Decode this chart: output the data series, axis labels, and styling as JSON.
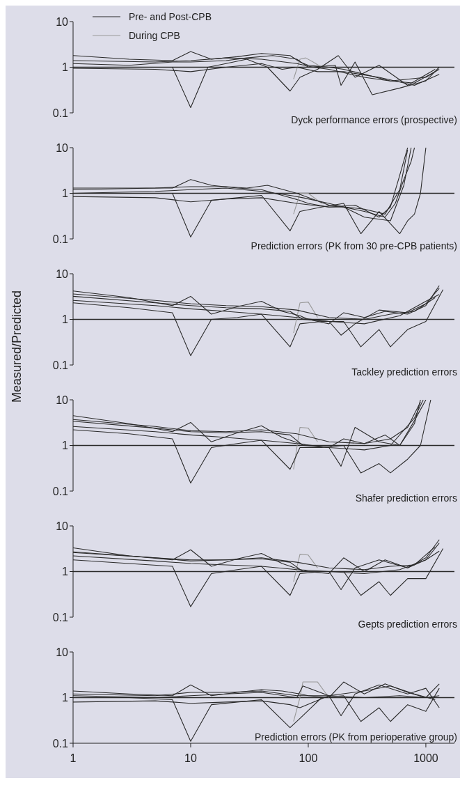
{
  "chart_data": [
    {
      "type": "line",
      "title": "Dyck performance errors (prospective)",
      "log": "xy",
      "xlim": [
        1,
        1750
      ],
      "ylim": [
        0.1,
        10
      ],
      "yticks": [
        0.1,
        1,
        10
      ],
      "tick_labels": "y",
      "legend": "top left",
      "ref_lines": [
        {
          "axis": "y",
          "value": 1,
          "color": "#2a2a2a"
        }
      ],
      "series": [
        {
          "name": "Pre- and Post-CPB",
          "color": "#2a2a2a",
          "x": [
            1,
            3,
            7,
            10,
            15,
            25,
            40,
            70,
            85,
            100,
            150,
            200,
            300,
            500,
            800,
            1200
          ],
          "values": [
            1.8,
            1.5,
            1.4,
            2.2,
            1.5,
            1.7,
            2.0,
            1.8,
            1.3,
            1.1,
            1.0,
            0.9,
            0.7,
            0.5,
            0.45,
            0.8
          ]
        },
        {
          "name": "During CPB",
          "color": "#9a9a9a",
          "x": [
            75,
            85,
            95,
            110,
            130
          ],
          "values": [
            0.55,
            1.5,
            1.6,
            1.3,
            1.0
          ]
        },
        {
          "color": "#2a2a2a",
          "x": [
            1,
            3,
            7,
            10,
            14,
            20,
            30,
            45,
            70,
            85,
            120,
            180,
            250,
            400,
            700,
            1200
          ],
          "values": [
            1.0,
            1.0,
            1.0,
            0.13,
            1.0,
            1.2,
            1.5,
            1.0,
            0.3,
            0.6,
            0.9,
            1.8,
            0.6,
            1.1,
            0.4,
            0.9
          ]
        },
        {
          "color": "#2a2a2a",
          "x": [
            1,
            3,
            7,
            10,
            20,
            30,
            50,
            80,
            100,
            170,
            190,
            250,
            350,
            600,
            1000,
            1300
          ],
          "values": [
            1.2,
            1.1,
            1.3,
            1.3,
            1.4,
            1.6,
            1.8,
            1.5,
            1.0,
            1.1,
            0.4,
            1.3,
            0.25,
            0.35,
            0.5,
            1.0
          ]
        },
        {
          "color": "#2a2a2a",
          "x": [
            1,
            5,
            10,
            20,
            40,
            80,
            110,
            150,
            300,
            500,
            1000,
            1300
          ],
          "values": [
            1.4,
            1.3,
            1.4,
            1.6,
            1.5,
            1.2,
            1.0,
            0.9,
            0.6,
            0.5,
            0.6,
            0.9
          ]
        },
        {
          "color": "#2a2a2a",
          "x": [
            1,
            5,
            10,
            20,
            40,
            60,
            80,
            120,
            200,
            400,
            800,
            1300
          ],
          "values": [
            0.95,
            0.9,
            0.8,
            1.0,
            1.2,
            0.9,
            1.0,
            0.8,
            0.8,
            0.6,
            0.4,
            0.7
          ]
        }
      ]
    },
    {
      "type": "line",
      "title": "Prediction errors (PK from 30 pre-CPB patients)",
      "log": "xy",
      "xlim": [
        1,
        1750
      ],
      "ylim": [
        0.1,
        10
      ],
      "yticks": [
        0.1,
        1,
        10
      ],
      "tick_labels": "y",
      "ref_lines": [
        {
          "axis": "y",
          "value": 1,
          "color": "#2a2a2a"
        }
      ],
      "series": [
        {
          "color": "#2a2a2a",
          "x": [
            1,
            3,
            7,
            10,
            15,
            25,
            40,
            60,
            85,
            100,
            150,
            200,
            300,
            450,
            550,
            650,
            750,
            800
          ],
          "values": [
            1.3,
            1.3,
            1.3,
            2.0,
            1.5,
            1.3,
            1.2,
            0.9,
            0.7,
            0.6,
            0.5,
            0.5,
            0.4,
            0.3,
            0.6,
            2,
            5,
            10
          ]
        },
        {
          "color": "#9a9a9a",
          "x": [
            75,
            85,
            100,
            130
          ],
          "values": [
            0.35,
            1.0,
            1.0,
            0.6
          ]
        },
        {
          "color": "#2a2a2a",
          "x": [
            1,
            3,
            7,
            10,
            15,
            25,
            40,
            70,
            85,
            130,
            200,
            280,
            400,
            600,
            700,
            800,
            900,
            1000
          ],
          "values": [
            1.0,
            1.0,
            1.0,
            0.11,
            0.7,
            0.8,
            0.9,
            0.15,
            0.4,
            0.5,
            0.6,
            0.13,
            0.4,
            0.13,
            0.25,
            0.35,
            1,
            10
          ]
        },
        {
          "color": "#2a2a2a",
          "x": [
            1,
            5,
            10,
            20,
            40,
            70,
            90,
            150,
            200,
            300,
            500,
            650,
            750
          ],
          "values": [
            1.0,
            1.1,
            1.2,
            1.3,
            1.1,
            0.9,
            0.8,
            0.6,
            0.5,
            0.3,
            0.25,
            1.5,
            10
          ]
        },
        {
          "color": "#2a2a2a",
          "x": [
            1,
            5,
            10,
            20,
            40,
            80,
            150,
            250,
            400,
            500,
            600,
            700
          ],
          "values": [
            0.85,
            0.8,
            0.65,
            0.75,
            0.8,
            0.6,
            0.5,
            0.55,
            0.3,
            0.5,
            2.5,
            10
          ]
        },
        {
          "color": "#2a2a2a",
          "x": [
            1,
            5,
            10,
            20,
            30,
            45,
            80,
            150,
            300,
            450,
            600,
            700
          ],
          "values": [
            1.2,
            1.3,
            1.4,
            1.4,
            1.3,
            1.5,
            1.0,
            0.55,
            0.45,
            0.35,
            1.2,
            9
          ]
        }
      ]
    },
    {
      "type": "line",
      "title": "Tackley prediction errors",
      "ylabel": "Measured/Predicted",
      "log": "xy",
      "xlim": [
        1,
        1750
      ],
      "ylim": [
        0.1,
        10
      ],
      "yticks": [
        0.1,
        1,
        10
      ],
      "tick_labels": "y",
      "ref_lines": [
        {
          "axis": "y",
          "value": 1,
          "color": "#2a2a2a"
        }
      ],
      "series": [
        {
          "color": "#2a2a2a",
          "x": [
            1,
            3,
            7,
            10,
            15,
            25,
            40,
            60,
            85,
            100,
            150,
            200,
            300,
            450,
            700,
            1000,
            1300
          ],
          "values": [
            4.2,
            3,
            2,
            3.2,
            1.3,
            1.9,
            2.5,
            1.5,
            1.2,
            1.0,
            0.8,
            1.4,
            1.1,
            1.5,
            1.3,
            2,
            5.5
          ]
        },
        {
          "color": "#9a9a9a",
          "x": [
            75,
            85,
            100,
            120
          ],
          "values": [
            0.5,
            2.3,
            2.4,
            1.1
          ]
        },
        {
          "color": "#2a2a2a",
          "x": [
            1,
            3,
            7,
            10,
            15,
            25,
            40,
            70,
            85,
            130,
            200,
            280,
            400,
            500,
            700,
            1000,
            1400
          ],
          "values": [
            2.3,
            1.8,
            1.4,
            0.16,
            1.0,
            1.1,
            1.3,
            0.25,
            0.8,
            0.9,
            0.9,
            0.25,
            0.6,
            0.25,
            0.6,
            0.9,
            4.5
          ]
        },
        {
          "color": "#2a2a2a",
          "x": [
            1,
            5,
            10,
            20,
            40,
            70,
            90,
            150,
            190,
            250,
            400,
            700,
            1000,
            1300
          ],
          "values": [
            3.2,
            2.3,
            2.0,
            1.8,
            1.7,
            1.5,
            1.0,
            0.9,
            0.45,
            0.8,
            1.6,
            1.4,
            2.2,
            4.8
          ]
        },
        {
          "color": "#2a2a2a",
          "x": [
            1,
            5,
            10,
            20,
            40,
            80,
            150,
            300,
            600,
            1000,
            1300
          ],
          "values": [
            2.6,
            2.0,
            1.7,
            1.5,
            1.3,
            1.1,
            0.9,
            0.8,
            1.2,
            2.5,
            3.5
          ]
        },
        {
          "color": "#2a2a2a",
          "x": [
            1,
            5,
            10,
            20,
            40,
            80,
            150,
            300,
            500,
            800,
            1200
          ],
          "values": [
            3.6,
            2.6,
            2.2,
            2.0,
            1.9,
            1.6,
            1.1,
            1.0,
            1.3,
            1.5,
            3.0
          ]
        }
      ]
    },
    {
      "type": "line",
      "title": "Shafer prediction errors",
      "log": "xy",
      "xlim": [
        1,
        1750
      ],
      "ylim": [
        0.1,
        10
      ],
      "yticks": [
        0.1,
        1,
        10
      ],
      "tick_labels": "y",
      "ref_lines": [
        {
          "axis": "y",
          "value": 1,
          "color": "#2a2a2a"
        }
      ],
      "series": [
        {
          "color": "#2a2a2a",
          "x": [
            1,
            3,
            7,
            10,
            15,
            25,
            40,
            60,
            85,
            100,
            150,
            200,
            300,
            450,
            600,
            800,
            900
          ],
          "values": [
            4.5,
            3,
            2,
            3.2,
            1.2,
            1.9,
            2.7,
            1.5,
            1.1,
            1.0,
            0.9,
            1.4,
            1.1,
            1.7,
            1.0,
            3,
            10
          ]
        },
        {
          "color": "#9a9a9a",
          "x": [
            75,
            85,
            100,
            120
          ],
          "values": [
            0.3,
            2.5,
            2.4,
            1.2
          ]
        },
        {
          "color": "#2a2a2a",
          "x": [
            1,
            3,
            7,
            10,
            15,
            25,
            40,
            70,
            85,
            130,
            200,
            280,
            400,
            500,
            700,
            900,
            1100
          ],
          "values": [
            2.2,
            1.8,
            1.4,
            0.15,
            0.9,
            1.1,
            1.3,
            0.3,
            0.9,
            0.9,
            1.0,
            0.25,
            0.4,
            0.25,
            0.5,
            1,
            10
          ]
        },
        {
          "color": "#2a2a2a",
          "x": [
            1,
            5,
            10,
            20,
            40,
            70,
            90,
            150,
            190,
            250,
            400,
            600,
            800,
            1000
          ],
          "values": [
            3.4,
            2.4,
            2.0,
            1.9,
            2.0,
            1.7,
            1.0,
            0.9,
            0.35,
            2.5,
            1.2,
            1.0,
            3.5,
            10
          ]
        },
        {
          "color": "#2a2a2a",
          "x": [
            1,
            5,
            10,
            20,
            40,
            80,
            150,
            300,
            500,
            800,
            950
          ],
          "values": [
            2.6,
            2.0,
            1.7,
            1.5,
            1.3,
            1.1,
            0.9,
            0.8,
            1.0,
            4,
            10
          ]
        },
        {
          "color": "#2a2a2a",
          "x": [
            1,
            5,
            10,
            20,
            40,
            80,
            150,
            300,
            500,
            700,
            900
          ],
          "values": [
            3.7,
            2.6,
            2.1,
            2.0,
            2.2,
            1.8,
            1.2,
            1.1,
            1.4,
            2.5,
            9
          ]
        }
      ]
    },
    {
      "type": "line",
      "title": "Gepts prediction errors",
      "log": "xy",
      "xlim": [
        1,
        1750
      ],
      "ylim": [
        0.1,
        10
      ],
      "yticks": [
        0.1,
        1,
        10
      ],
      "tick_labels": "y",
      "ref_lines": [
        {
          "axis": "y",
          "value": 1,
          "color": "#2a2a2a"
        }
      ],
      "series": [
        {
          "color": "#2a2a2a",
          "x": [
            1,
            3,
            7,
            10,
            15,
            25,
            40,
            60,
            85,
            100,
            150,
            200,
            300,
            450,
            700,
            1000,
            1300
          ],
          "values": [
            3.3,
            2.2,
            1.8,
            3.0,
            1.3,
            1.9,
            2.5,
            1.5,
            1.1,
            1.0,
            0.9,
            2.0,
            1.0,
            1.8,
            1.2,
            2,
            5
          ]
        },
        {
          "color": "#9a9a9a",
          "x": [
            75,
            85,
            100,
            120
          ],
          "values": [
            0.6,
            2.4,
            2.3,
            1.2
          ]
        },
        {
          "color": "#2a2a2a",
          "x": [
            1,
            3,
            7,
            10,
            15,
            25,
            40,
            70,
            85,
            130,
            200,
            280,
            400,
            500,
            700,
            1000,
            1400
          ],
          "values": [
            1.8,
            1.5,
            1.3,
            0.17,
            0.9,
            1.1,
            1.3,
            0.3,
            0.9,
            1.0,
            1.0,
            0.3,
            0.6,
            0.3,
            0.7,
            0.7,
            3.2
          ]
        },
        {
          "color": "#2a2a2a",
          "x": [
            1,
            5,
            10,
            20,
            40,
            70,
            90,
            150,
            190,
            250,
            400,
            700,
            1000,
            1300
          ],
          "values": [
            2.7,
            2.0,
            1.7,
            1.8,
            1.9,
            1.6,
            1.0,
            1.0,
            0.4,
            1.2,
            1.8,
            1.2,
            1.8,
            4.2
          ]
        },
        {
          "color": "#2a2a2a",
          "x": [
            1,
            5,
            10,
            20,
            40,
            80,
            150,
            300,
            600,
            1000,
            1300
          ],
          "values": [
            2.2,
            1.7,
            1.5,
            1.4,
            1.3,
            1.1,
            1.0,
            0.9,
            1.1,
            1.8,
            2.8
          ]
        },
        {
          "color": "#2a2a2a",
          "x": [
            1,
            5,
            10,
            20,
            40,
            80,
            150,
            300,
            500,
            800,
            1200
          ],
          "values": [
            2.6,
            2.0,
            1.8,
            1.8,
            2.0,
            1.6,
            1.2,
            1.1,
            1.3,
            1.4,
            3.5
          ]
        }
      ]
    },
    {
      "type": "line",
      "title": "Prediction errors (PK from perioperative group)",
      "log": "xy",
      "xlim": [
        1,
        1750
      ],
      "xticks": [
        1,
        10,
        100,
        1000
      ],
      "ylim": [
        0.1,
        10
      ],
      "yticks": [
        0.1,
        1,
        10
      ],
      "ref_lines": [
        {
          "axis": "y",
          "value": 1,
          "color": "#2a2a2a"
        }
      ],
      "series": [
        {
          "color": "#2a2a2a",
          "x": [
            1,
            3,
            7,
            10,
            15,
            25,
            40,
            60,
            85,
            100,
            150,
            200,
            300,
            450,
            700,
            1000,
            1300
          ],
          "values": [
            1.4,
            1.2,
            1.1,
            1.9,
            1.1,
            1.3,
            1.5,
            1.4,
            1.2,
            1.1,
            1.0,
            2.2,
            1.2,
            2.0,
            1.3,
            1.0,
            2.0
          ]
        },
        {
          "color": "#9a9a9a",
          "x": [
            75,
            85,
            90,
            120,
            150
          ],
          "values": [
            0.3,
            1.0,
            2.2,
            2.2,
            1.0
          ]
        },
        {
          "color": "#2a2a2a",
          "x": [
            1,
            3,
            7,
            10,
            15,
            25,
            40,
            70,
            85,
            130,
            200,
            280,
            400,
            500,
            700,
            1000,
            1300
          ],
          "values": [
            1.0,
            1.0,
            0.9,
            0.11,
            0.7,
            0.8,
            0.9,
            0.22,
            0.35,
            1.0,
            1.1,
            0.3,
            0.6,
            0.3,
            0.7,
            0.5,
            1.6
          ]
        },
        {
          "color": "#2a2a2a",
          "x": [
            1,
            5,
            10,
            20,
            40,
            70,
            85,
            150,
            190,
            250,
            400,
            700,
            1000,
            1300
          ],
          "values": [
            0.8,
            0.85,
            0.75,
            0.8,
            0.85,
            0.7,
            0.6,
            1.1,
            0.4,
            1.2,
            1.9,
            1.2,
            1.6,
            0.6
          ]
        },
        {
          "color": "#2a2a2a",
          "x": [
            1,
            5,
            10,
            20,
            40,
            80,
            90,
            150,
            300,
            600,
            1000,
            1300
          ],
          "values": [
            1.1,
            1.0,
            1.1,
            1.2,
            1.3,
            1.0,
            1.8,
            1.1,
            1.0,
            1.1,
            1.0,
            1.1
          ]
        },
        {
          "color": "#2a2a2a",
          "x": [
            1,
            5,
            10,
            20,
            40,
            80,
            150,
            300,
            500,
            800,
            1200
          ],
          "values": [
            1.2,
            1.1,
            1.3,
            1.3,
            1.4,
            1.1,
            1.1,
            1.4,
            1.8,
            1.2,
            0.9
          ]
        }
      ]
    }
  ]
}
